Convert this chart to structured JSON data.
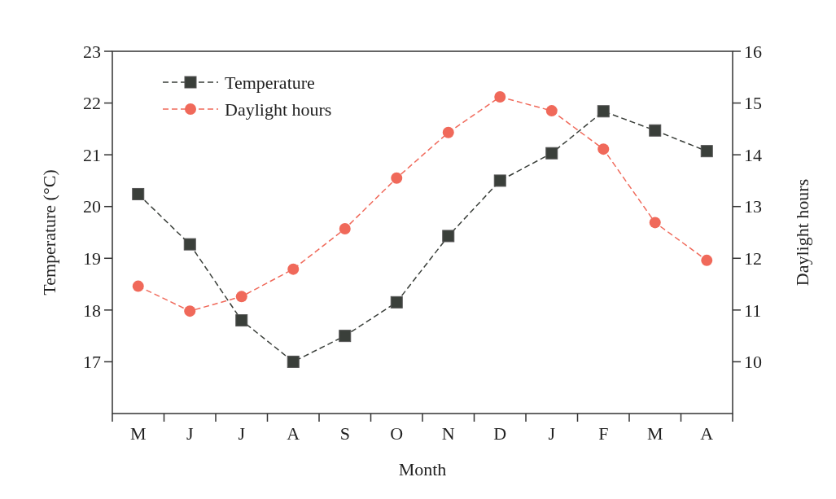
{
  "chart_data": {
    "type": "line",
    "xlabel": "Month",
    "ylabel": "Temperature (°C)",
    "y2label": "Daylight hours",
    "categories": [
      "M",
      "J",
      "J",
      "A",
      "S",
      "O",
      "N",
      "D",
      "J",
      "F",
      "M",
      "A"
    ],
    "series": [
      {
        "name": "Temperature",
        "color": "#3a3f3a",
        "marker": "square",
        "values": [
          20.24,
          19.27,
          17.8,
          17.0,
          17.5,
          18.15,
          19.43,
          20.5,
          21.03,
          21.84,
          21.47,
          21.07
        ]
      },
      {
        "name": "Daylight hours",
        "color": "#f0695a",
        "marker": "circle",
        "axis": "y2",
        "values": [
          11.46,
          10.98,
          11.26,
          11.79,
          12.57,
          13.55,
          14.43,
          15.12,
          14.85,
          14.11,
          12.69,
          11.96
        ]
      }
    ],
    "ylim": [
      16,
      23
    ],
    "yticks": [
      17,
      18,
      19,
      20,
      21,
      22,
      23
    ],
    "y2lim": [
      9,
      16
    ],
    "y2ticks": [
      10,
      11,
      12,
      13,
      14,
      15,
      16
    ],
    "line_style": "dashed",
    "legend": "top left",
    "grid": false
  }
}
